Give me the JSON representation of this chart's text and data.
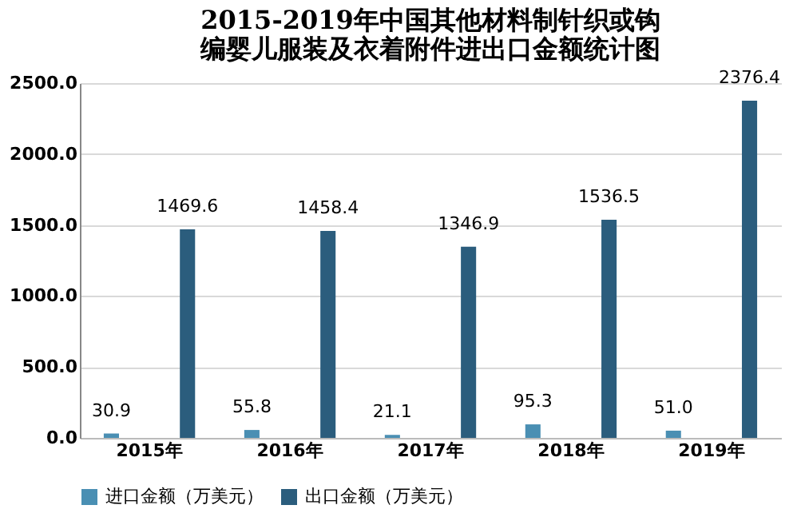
{
  "chart_data": {
    "type": "bar",
    "title": "2015-2019年中国其他材料制针织或钩编婴儿服装及衣着附件进出口金额统计图",
    "categories": [
      "2015年",
      "2016年",
      "2017年",
      "2018年",
      "2019年"
    ],
    "series": [
      {
        "name": "进口金额（万美元）",
        "color": "#4a8fb3",
        "values": [
          30.9,
          55.8,
          21.1,
          95.3,
          51.0
        ],
        "value_labels": [
          "30.9",
          "55.8",
          "21.1",
          "95.3",
          "51.0"
        ]
      },
      {
        "name": "出口金额（万美元）",
        "color": "#2b5d7d",
        "values": [
          1469.6,
          1458.4,
          1346.9,
          1536.5,
          2376.4
        ],
        "value_labels": [
          "1469.6",
          "1458.4",
          "1346.9",
          "1536.5",
          "2376.4"
        ]
      }
    ],
    "ylim": [
      0,
      2500
    ],
    "yticks": [
      {
        "value": 0,
        "label": "0.0"
      },
      {
        "value": 500,
        "label": "500.0"
      },
      {
        "value": 1000,
        "label": "1000.0"
      },
      {
        "value": 1500,
        "label": "1500.0"
      },
      {
        "value": 2000,
        "label": "2000.0"
      },
      {
        "value": 2500,
        "label": "2500.0"
      }
    ],
    "grid": "y",
    "legend": "bottom"
  }
}
